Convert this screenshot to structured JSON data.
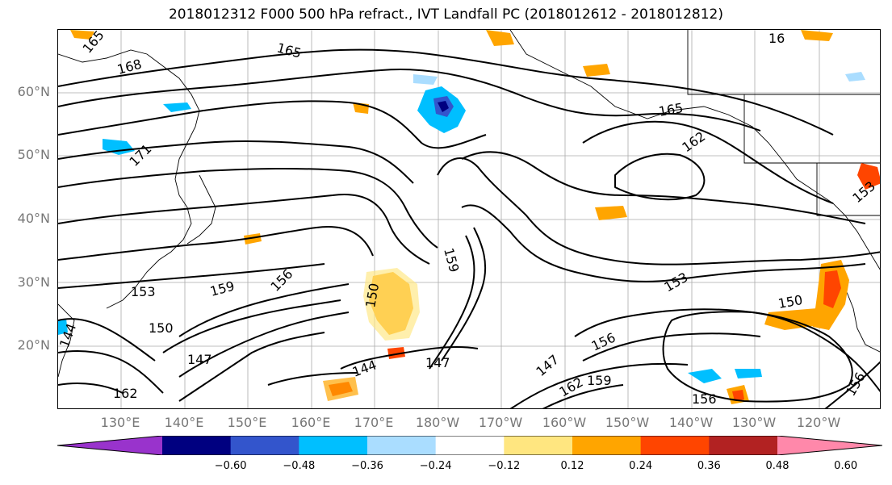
{
  "title": "2018012312 F000 500 hPa refract., IVT Landfall PC (2018012612 - 2018012812)",
  "lat_labels": [
    "60°N",
    "50°N",
    "40°N",
    "30°N",
    "20°N"
  ],
  "lon_labels": [
    "130°E",
    "140°E",
    "150°E",
    "160°E",
    "170°E",
    "180°W",
    "170°W",
    "160°W",
    "150°W",
    "140°W",
    "130°W",
    "120°W"
  ],
  "contour_labels": [
    "165",
    "168",
    "165",
    "171",
    "165",
    "162",
    "16",
    "159",
    "153",
    "153",
    "159",
    "156",
    "150",
    "150",
    "144",
    "147",
    "147",
    "156",
    "159",
    "162",
    "156",
    "144",
    "147",
    "150",
    "162",
    "156",
    "153"
  ],
  "colorbar": {
    "colors": [
      "#9933cc",
      "#000080",
      "#3355cc",
      "#00bfff",
      "#aaddff",
      "#ffffff",
      "#ffe680",
      "#ffa500",
      "#ff4500",
      "#b22222",
      "#ff88aa"
    ],
    "ticks": [
      "−0.60",
      "−0.48",
      "−0.36",
      "−0.24",
      "−0.12",
      "0.12",
      "0.24",
      "0.36",
      "0.48",
      "0.60"
    ]
  }
}
